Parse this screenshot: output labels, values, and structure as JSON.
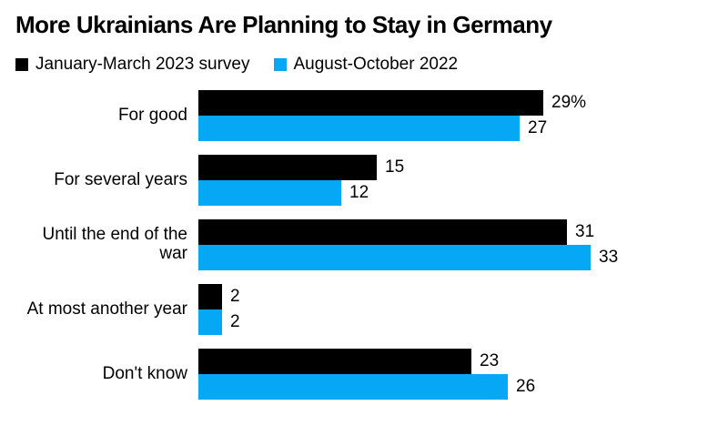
{
  "title": "More Ukrainians Are Planning to Stay in Germany",
  "legend": [
    {
      "label": "January-March 2023 survey",
      "color": "#000000"
    },
    {
      "label": "August-October 2022",
      "color": "#06a7f4"
    }
  ],
  "chart_data": {
    "type": "bar",
    "orientation": "horizontal",
    "title": "More Ukrainians Are Planning to Stay in Germany",
    "categories": [
      "For good",
      "For several years",
      "Until the end of the war",
      "At most another year",
      "Don't know"
    ],
    "series": [
      {
        "name": "January-March 2023 survey",
        "color": "#000000",
        "values": [
          29,
          15,
          31,
          2,
          23
        ],
        "value_labels": [
          "29%",
          "15",
          "31",
          "2",
          "23"
        ]
      },
      {
        "name": "August-October 2022",
        "color": "#06a7f4",
        "values": [
          27,
          12,
          33,
          2,
          26
        ],
        "value_labels": [
          "27",
          "12",
          "33",
          "2",
          "26"
        ]
      }
    ],
    "xlim": [
      0,
      33
    ],
    "grid": false,
    "legend_position": "top",
    "xlabel": "",
    "ylabel": "",
    "value_unit": "%"
  },
  "colors": {
    "background": "#ffffff",
    "text": "#000000",
    "series_2023": "#000000",
    "series_2022": "#06a7f4"
  }
}
